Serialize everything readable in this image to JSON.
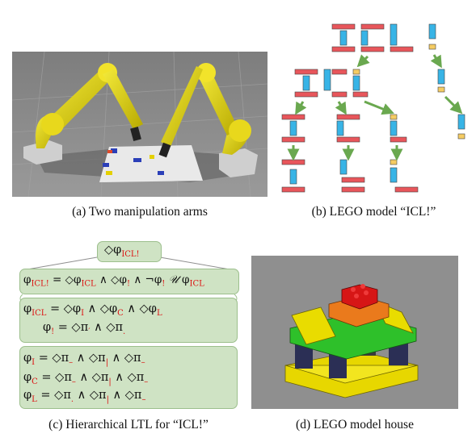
{
  "captions": {
    "a": "(a) Two manipulation arms",
    "b": "(b) LEGO model “ICL!”",
    "c": "(c) Hierarchical LTL for “ICL!”",
    "d": "(d) LEGO model house"
  },
  "ltl": {
    "root": {
      "op": "◇φ",
      "sub": "ICL!"
    },
    "eq_top": {
      "lhs_phi": "φ",
      "lhs_sub": "ICL!",
      "eq": " = ◇φ",
      "s1": "ICL",
      "and1": " ∧ ◇φ",
      "s2": "!",
      "and2": " ∧ ¬φ",
      "s3": "!",
      "until": "𝒰",
      "phi4": " φ",
      "s4": "ICL"
    },
    "eq_icl": {
      "lhs_phi": "φ",
      "lhs_sub": "ICL",
      "eq": " = ◇φ",
      "s1": "I",
      "and1": " ∧ ◇φ",
      "s2": "C",
      "and2": " ∧ ◇φ",
      "s3": "L"
    },
    "eq_bang": {
      "lhs_phi": "φ",
      "lhs_sub": "!",
      "rhs": " = ◇π",
      "s1": "′",
      "and": " ∧ ◇π",
      "s2": "."
    },
    "eq_I": {
      "lhs_phi": "φ",
      "lhs_sub": "I",
      "rhs": " = ◇π",
      "s1": "–",
      "and1": " ∧ ◇π",
      "s2": "|",
      "and2": " ∧ ◇π",
      "s3": "–"
    },
    "eq_C": {
      "lhs_phi": "φ",
      "lhs_sub": "C",
      "rhs": " = ◇π",
      "s1": "–",
      "and1": " ∧ ◇π",
      "s2": "|",
      "and2": " ∧ ◇π",
      "s3": "–"
    },
    "eq_L": {
      "lhs_phi": "φ",
      "lhs_sub": "L",
      "rhs": " = ◇π",
      "s1": ".",
      "and1": " ∧ ◇π",
      "s2": "|",
      "and2": " ∧ ◇π",
      "s3": "–"
    }
  },
  "lego_text": {
    "top": "ICL!",
    "left_word": "ICL",
    "right_mark": "!",
    "letters": [
      "I",
      "C",
      "L",
      "!"
    ]
  },
  "colors": {
    "brick_red": "#e8565b",
    "brick_blue": "#38b4e6",
    "brick_yellow": "#f5cc63",
    "arrow_green": "#6aa84f",
    "arm_yellow": "#e3d400",
    "ltl_green": "#cfe3c4"
  }
}
